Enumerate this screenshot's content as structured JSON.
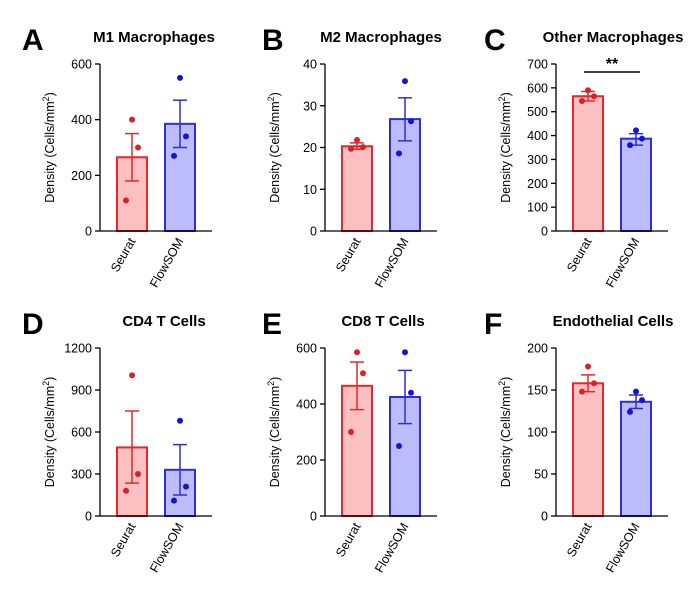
{
  "figure": {
    "ylabel": "Density (Cells/mm",
    "ylabel_sup": "2",
    "ylabel_end": ")"
  },
  "colors": {
    "red_fill": "#fdc0c0",
    "red_stroke": "#e8262c",
    "red_point": "#e01f25",
    "blue_fill": "#bcbcfb",
    "blue_stroke": "#2e2ed6",
    "blue_point": "#1414d8",
    "axis": "#000000"
  },
  "chart_data": [
    {
      "panel": "A",
      "type": "bar",
      "title": "M1 Macrophages",
      "categories": [
        "Seurat",
        "FlowSOM"
      ],
      "ylim": [
        0,
        600
      ],
      "yticks": [
        0,
        200,
        400,
        600
      ],
      "series": [
        {
          "name": "Seurat",
          "mean": 265,
          "error": [
            180,
            350
          ],
          "points": [
            400,
            300,
            110
          ]
        },
        {
          "name": "FlowSOM",
          "mean": 385,
          "error": [
            300,
            470
          ],
          "points": [
            550,
            340,
            270
          ]
        }
      ]
    },
    {
      "panel": "B",
      "type": "bar",
      "title": "M2 Macrophages",
      "categories": [
        "Seurat",
        "FlowSOM"
      ],
      "ylim": [
        0,
        40
      ],
      "yticks": [
        0,
        10,
        20,
        30,
        40
      ],
      "series": [
        {
          "name": "Seurat",
          "mean": 20.3,
          "error": [
            19.6,
            21.1
          ],
          "points": [
            21.8,
            20.1,
            19.7
          ]
        },
        {
          "name": "FlowSOM",
          "mean": 26.8,
          "error": [
            21.6,
            31.9
          ],
          "points": [
            35.9,
            26.3,
            18.6
          ]
        }
      ]
    },
    {
      "panel": "C",
      "type": "bar",
      "title": "Other Macrophages",
      "categories": [
        "Seurat",
        "FlowSOM"
      ],
      "ylim": [
        0,
        700
      ],
      "yticks": [
        0,
        100,
        200,
        300,
        400,
        500,
        600,
        700
      ],
      "annotation": "**",
      "series": [
        {
          "name": "Seurat",
          "mean": 565,
          "error": [
            545,
            585
          ],
          "points": [
            590,
            565,
            545
          ]
        },
        {
          "name": "FlowSOM",
          "mean": 387,
          "error": [
            360,
            408
          ],
          "points": [
            422,
            387,
            360
          ]
        }
      ]
    },
    {
      "panel": "D",
      "type": "bar",
      "title": "CD4 T Cells",
      "categories": [
        "Seurat",
        "FlowSOM"
      ],
      "ylim": [
        0,
        1200
      ],
      "yticks": [
        0,
        300,
        600,
        900,
        1200
      ],
      "series": [
        {
          "name": "Seurat",
          "mean": 490,
          "error": [
            235,
            750
          ],
          "points": [
            1005,
            300,
            180
          ]
        },
        {
          "name": "FlowSOM",
          "mean": 330,
          "error": [
            150,
            510
          ],
          "points": [
            680,
            210,
            110
          ]
        }
      ]
    },
    {
      "panel": "E",
      "type": "bar",
      "title": "CD8 T Cells",
      "categories": [
        "Seurat",
        "FlowSOM"
      ],
      "ylim": [
        0,
        600
      ],
      "yticks": [
        0,
        200,
        400,
        600
      ],
      "series": [
        {
          "name": "Seurat",
          "mean": 465,
          "error": [
            380,
            550
          ],
          "points": [
            585,
            510,
            300
          ]
        },
        {
          "name": "FlowSOM",
          "mean": 425,
          "error": [
            330,
            520
          ],
          "points": [
            585,
            440,
            250
          ]
        }
      ]
    },
    {
      "panel": "F",
      "type": "bar",
      "title": "Endothelial Cells",
      "categories": [
        "Seurat",
        "FlowSOM"
      ],
      "ylim": [
        0,
        200
      ],
      "yticks": [
        0,
        50,
        100,
        150,
        200
      ],
      "series": [
        {
          "name": "Seurat",
          "mean": 158,
          "error": [
            148,
            168
          ],
          "points": [
            178,
            158,
            148
          ]
        },
        {
          "name": "FlowSOM",
          "mean": 136,
          "error": [
            128,
            144
          ],
          "points": [
            148,
            138,
            124
          ]
        }
      ]
    }
  ]
}
